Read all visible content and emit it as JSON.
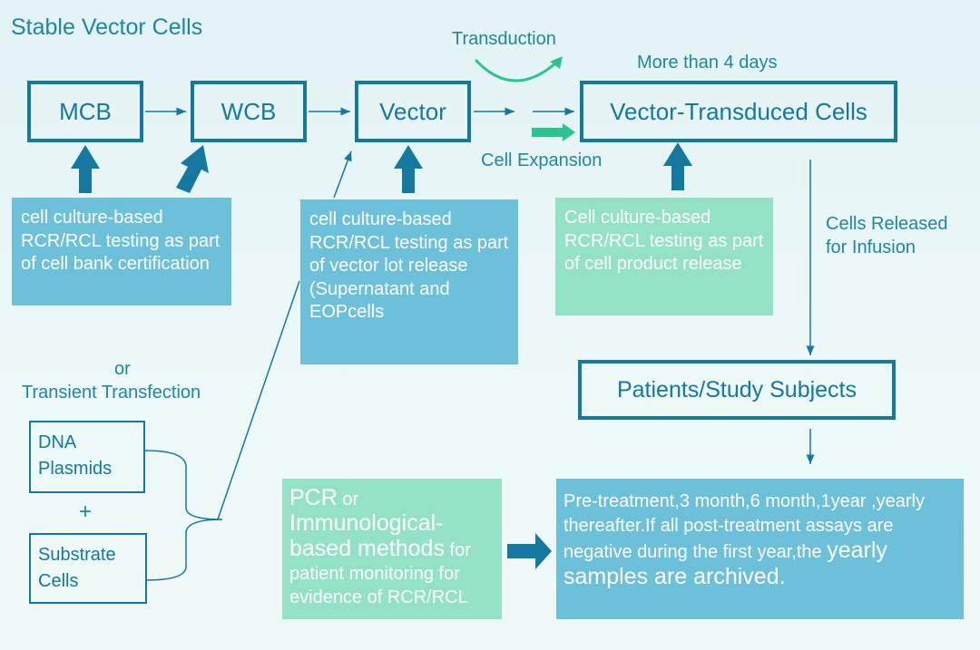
{
  "title": "Stable Vector Cells",
  "nodes": {
    "mcb": "MCB",
    "wcb": "WCB",
    "vector": "Vector",
    "transduced": "Vector-Transduced Cells",
    "patients": "Patients/Study Subjects",
    "dna": "DNA Plasmids",
    "substrate": "Substrate Cells"
  },
  "labels": {
    "transduction": "Transduction",
    "more_than": "More than 4 days",
    "cell_expansion": "Cell Expansion",
    "released": "Cells Released for Infusion",
    "or": "or",
    "transient": "Transient Transfection",
    "plus": "+"
  },
  "boxes": {
    "cell_bank": "cell culture-based RCR/RCL testing as part of cell bank certification",
    "vector_lot": "cell culture-based RCR/RCL testing as part of vector lot release (Supernatant and EOPcells",
    "cell_product": "Cell culture-based RCR/RCL testing as part of cell product release",
    "pcr_a": "PCR",
    "pcr_b": " or",
    "pcr_c": "Immunological-based methods",
    "pcr_d": " for patient monitoring for evidence of RCR/RCL",
    "schedule_a": "Pre-treatment,3 month,6 month,1year ,yearly thereafter.If all post-treatment assays are negative during the first year,the ",
    "schedule_b": "yearly samples are archived."
  },
  "colors": {
    "primary": "#1478a0",
    "blue_box": "#6cc0da",
    "green_box": "#93e2c6",
    "green_arrow": "#2cc48e"
  }
}
